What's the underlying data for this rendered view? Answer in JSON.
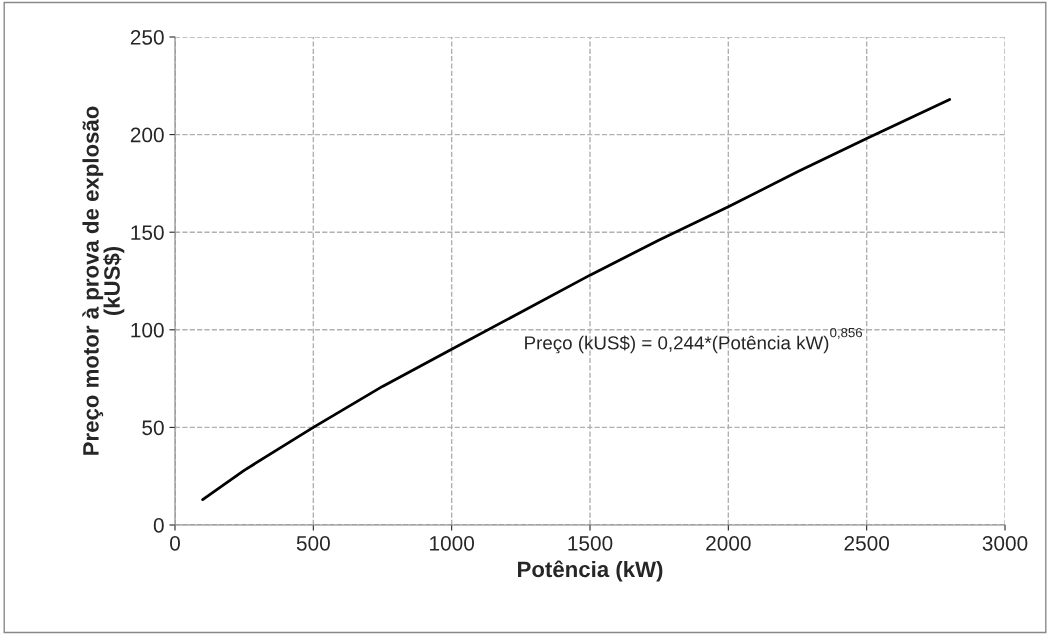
{
  "chart_data": {
    "type": "line",
    "xlabel": "Potência (kW)",
    "ylabel": "Preço motor à prova de explosão\n(kUS$)",
    "x": [
      100,
      250,
      500,
      750,
      1000,
      1250,
      1500,
      1750,
      2000,
      2250,
      2500,
      2800
    ],
    "series": [
      {
        "color": "#000000",
        "values": [
          13,
          28,
          50,
          71,
          90,
          109,
          128,
          146,
          163,
          181,
          198,
          218
        ]
      }
    ],
    "xlim": [
      0,
      3000
    ],
    "xticks": [
      0,
      500,
      1000,
      1500,
      2000,
      2500,
      3000
    ],
    "ylim": [
      0,
      250
    ],
    "yticks": [
      0,
      50,
      100,
      150,
      200,
      250
    ],
    "grid": true,
    "legend": false,
    "marker": "none",
    "line_style": "solid",
    "annotations": [
      "Preço (kUS$) = 0,244*(Potência kW)$^{0,856}$"
    ]
  }
}
